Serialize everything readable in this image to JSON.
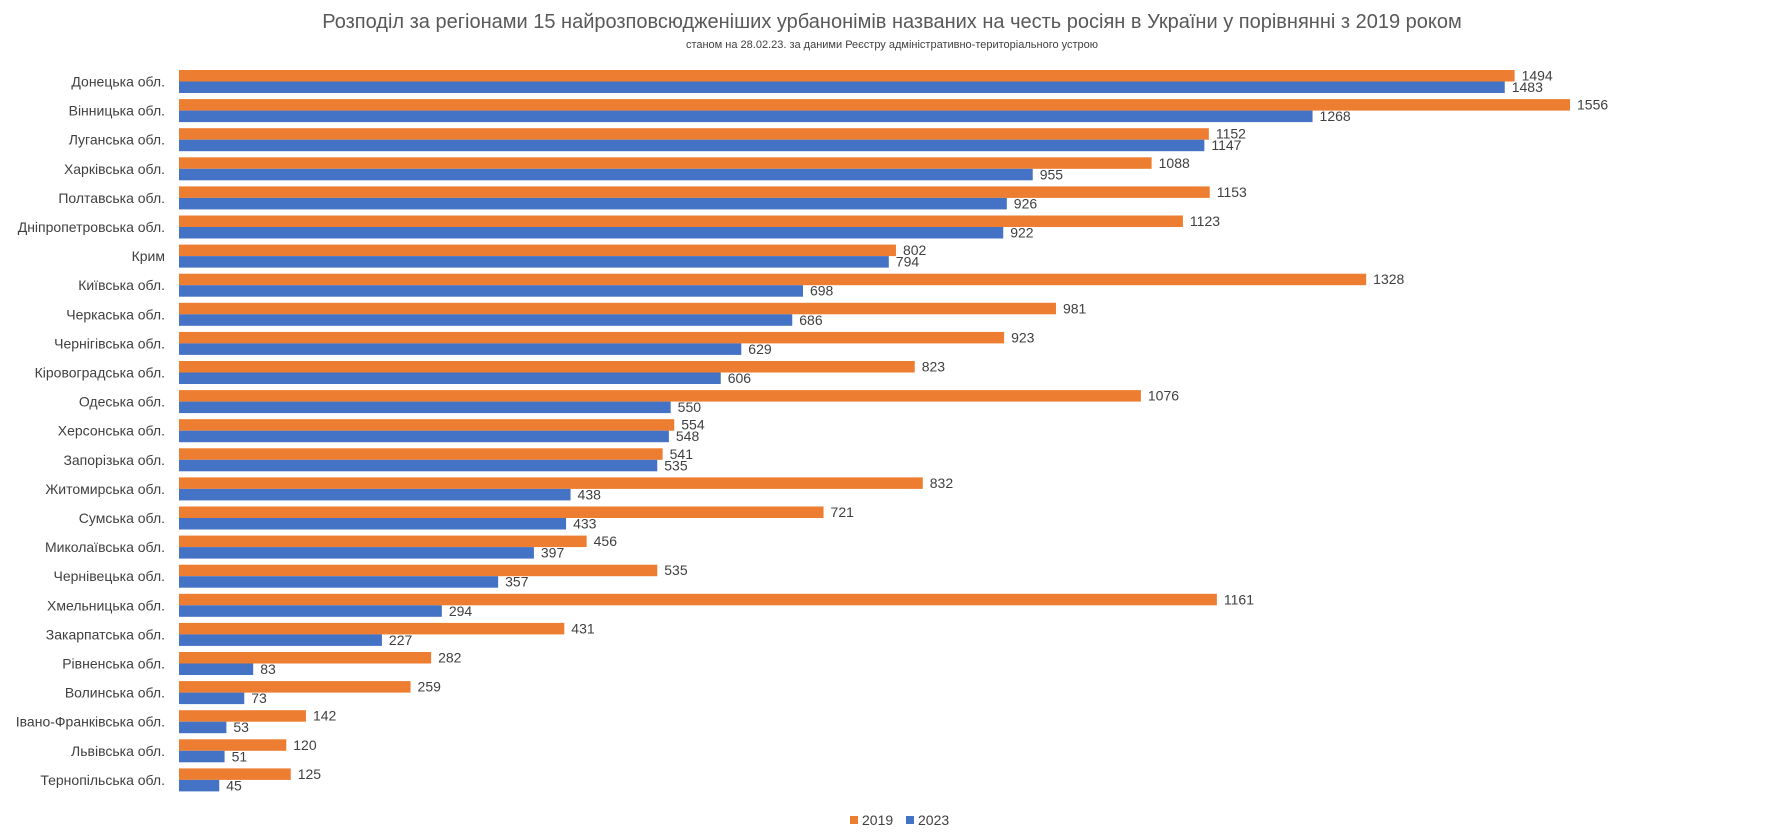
{
  "chart_data": {
    "type": "bar",
    "orientation": "horizontal",
    "title": "Розподіл за регіонами 15 найрозповсюдженіших урбанонімів названих на честь росіян в України у порівнянні з 2019 роком",
    "subtitle": "станом на 28.02.23. за даними Реєстру адміністративно-територіального устрою",
    "xlim": [
      0,
      1750
    ],
    "grid": false,
    "legend_position": "bottom",
    "categories": [
      "Донецька обл.",
      "Вінницька обл.",
      "Луганська обл.",
      "Харківська обл.",
      "Полтавська обл.",
      "Дніпропетровська обл.",
      "Крим",
      "Київська обл.",
      "Черкаська обл.",
      "Чернігівська обл.",
      "Кіровоградська обл.",
      "Одеська обл.",
      "Херсонська обл.",
      "Запорізька обл.",
      "Житомирська обл.",
      "Сумська обл.",
      "Миколаївська обл.",
      "Чернівецька обл.",
      "Хмельницька обл.",
      "Закарпатська обл.",
      "Рівненська обл.",
      "Волинська обл.",
      "Івано-Франківська обл.",
      "Львівська обл.",
      "Тернопільська обл."
    ],
    "series": [
      {
        "name": "2019",
        "color": "#ED7D31",
        "values": [
          1494,
          1556,
          1152,
          1088,
          1153,
          1123,
          802,
          1328,
          981,
          923,
          823,
          1076,
          554,
          541,
          832,
          721,
          456,
          535,
          1161,
          431,
          282,
          259,
          142,
          120,
          125
        ]
      },
      {
        "name": "2023",
        "color": "#4472C4",
        "values": [
          1483,
          1268,
          1147,
          955,
          926,
          922,
          794,
          698,
          686,
          629,
          606,
          550,
          548,
          535,
          438,
          433,
          397,
          357,
          294,
          227,
          83,
          73,
          53,
          51,
          45
        ]
      }
    ]
  }
}
